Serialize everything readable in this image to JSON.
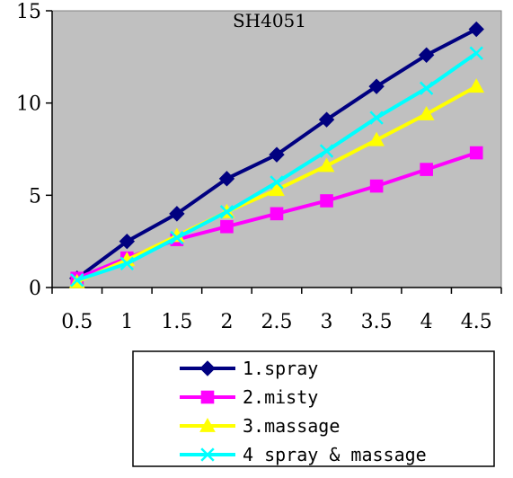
{
  "chart_data": {
    "type": "line",
    "title": "SH4051",
    "xlabel": "",
    "ylabel": "",
    "x_tick_labels": [
      "0.5",
      "1",
      "1.5",
      "2",
      "2.5",
      "3",
      "3.5",
      "4",
      "4.5"
    ],
    "y_tick_labels": [
      "0",
      "5",
      "10",
      "15"
    ],
    "ylim": [
      0,
      15
    ],
    "grid": false,
    "legend_position": "bottom",
    "plot_background": "#c0c0c0",
    "series": [
      {
        "name": "1.spray",
        "marker": "diamond",
        "color": "#000080",
        "x": [
          0.5,
          1,
          1.5,
          2,
          2.5,
          3,
          3.5,
          4,
          4.5
        ],
        "values": [
          0.5,
          2.5,
          4.0,
          5.9,
          7.2,
          9.1,
          10.9,
          12.6,
          14.0
        ]
      },
      {
        "name": "2.misty",
        "marker": "square",
        "color": "#ff00ff",
        "x": [
          0.5,
          1,
          1.5,
          2,
          2.5,
          3,
          3.5,
          4,
          4.5
        ],
        "values": [
          0.5,
          1.6,
          2.6,
          3.3,
          4.0,
          4.7,
          5.5,
          6.4,
          7.3
        ]
      },
      {
        "name": "3.massage",
        "marker": "triangle",
        "color": "#ffff00",
        "x": [
          0.5,
          1,
          1.5,
          2,
          2.5,
          3,
          3.5,
          4,
          4.5
        ],
        "values": [
          0.3,
          1.5,
          2.8,
          4.1,
          5.3,
          6.6,
          8.0,
          9.4,
          10.9
        ]
      },
      {
        "name": "4 spray & massage",
        "marker": "x",
        "color": "#00ffff",
        "x": [
          0.5,
          1,
          1.5,
          2,
          2.5,
          3,
          3.5,
          4,
          4.5
        ],
        "values": [
          0.4,
          1.3,
          2.7,
          4.1,
          5.7,
          7.4,
          9.2,
          10.8,
          12.7
        ]
      }
    ]
  }
}
